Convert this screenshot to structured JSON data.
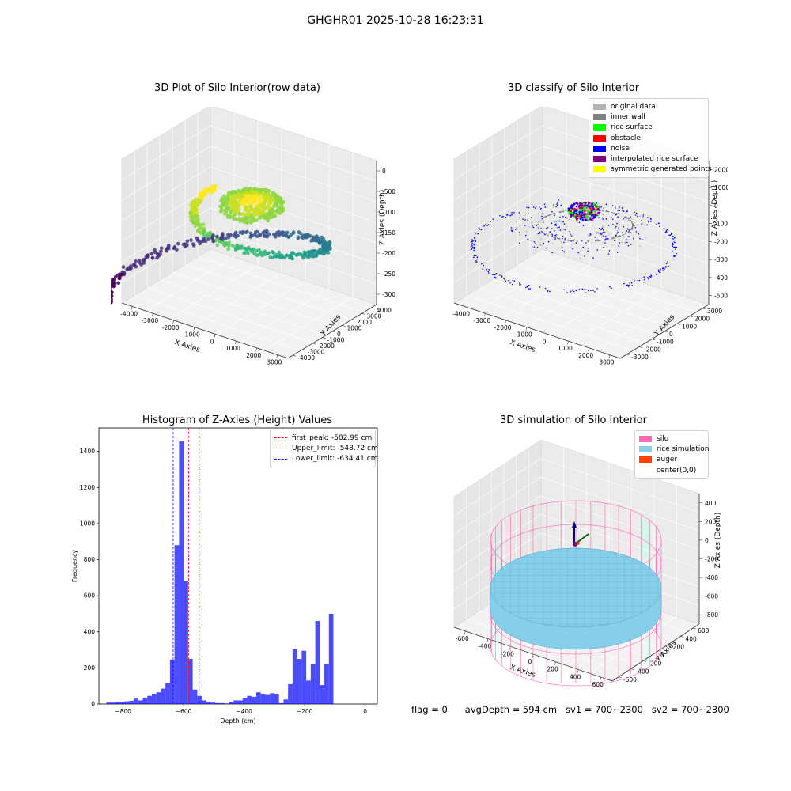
{
  "figure": {
    "suptitle": "GHGHR01 2025-10-28 16:23:31"
  },
  "panels": {
    "raw": {
      "title": "3D Plot of Silo Interior(row data)",
      "x_label": "X Axies",
      "y_label": "Y Axies",
      "z_label": "Z Axies (Depth)",
      "x_ticks": [
        "-4000",
        "-3000",
        "-2000",
        "-1000",
        "0",
        "1000",
        "2000",
        "3000"
      ],
      "y_ticks": [
        "-4000",
        "-3000",
        "-2000",
        "-1000",
        "0",
        "1000",
        "2000",
        "3000",
        "4000"
      ],
      "z_ticks": [
        "0",
        "-500",
        "-1000",
        "-1500",
        "-2000",
        "-2500",
        "-3000"
      ]
    },
    "classify": {
      "title": "3D classify of Silo Interior",
      "x_label": "X Axies",
      "y_label": "Y Axies",
      "z_label": "Z Axies (Depth)",
      "x_ticks": [
        "-4000",
        "-3000",
        "-2000",
        "-1000",
        "0",
        "1000",
        "2000",
        "3000"
      ],
      "y_ticks": [
        "-3000",
        "-2000",
        "-1000",
        "0",
        "1000",
        "2000",
        "3000"
      ],
      "z_ticks": [
        "2000",
        "1000",
        "0",
        "-1000",
        "-2000",
        "-3000",
        "-4000",
        "-5000"
      ],
      "legend": [
        {
          "label": "original data",
          "color": "#b3b3b3"
        },
        {
          "label": "inner wall",
          "color": "#808080"
        },
        {
          "label": "rice surface",
          "color": "#00ff00"
        },
        {
          "label": "obstacle",
          "color": "#ff0000"
        },
        {
          "label": "noise",
          "color": "#0000ff"
        },
        {
          "label": "interpolated rice surface",
          "color": "#800080"
        },
        {
          "label": "symmetric generated points",
          "color": "#ffff00"
        }
      ]
    },
    "simulation": {
      "title": "3D simulation of Silo Interior",
      "x_label": "X Axies",
      "y_label": "Y Axies",
      "z_label": "Z Axies (Depth)",
      "x_ticks": [
        "-600",
        "-400",
        "-200",
        "0",
        "200",
        "400",
        "600"
      ],
      "y_ticks": [
        "-600",
        "-400",
        "-200",
        "0",
        "200",
        "400",
        "600"
      ],
      "z_ticks": [
        "400",
        "200",
        "0",
        "-200",
        "-400",
        "-600",
        "-800"
      ],
      "legend": [
        {
          "label": "silo",
          "color": "#ff69b4"
        },
        {
          "label": "rice simulation",
          "color": "#87ceeb"
        },
        {
          "label": "auger",
          "color": "#ff4500"
        },
        {
          "label": "center(0,0)",
          "color": ""
        }
      ]
    }
  },
  "chart_data": {
    "type": "bar",
    "title": "Histogram of Z-Axies (Height) Values",
    "xlabel": "Depth (cm)",
    "ylabel": "Frequency",
    "xlim": [
      -880,
      40
    ],
    "ylim": [
      0,
      1530
    ],
    "bin_width": 15,
    "bin_start": -855,
    "values": [
      8,
      8,
      10,
      12,
      15,
      18,
      30,
      20,
      35,
      45,
      55,
      65,
      85,
      115,
      245,
      880,
      1455,
      680,
      250,
      80,
      45,
      20,
      10,
      8,
      5,
      5,
      3,
      10,
      20,
      20,
      35,
      45,
      40,
      65,
      55,
      50,
      60,
      55,
      5,
      25,
      110,
      305,
      250,
      295,
      130,
      220,
      460,
      105,
      220,
      500
    ],
    "x_ticks": [
      -800,
      -600,
      -400,
      -200,
      0
    ],
    "y_ticks": [
      0,
      200,
      400,
      600,
      800,
      1000,
      1200,
      1400
    ],
    "bar_color": "#0000ff",
    "legend": [
      {
        "label": "first_peak: -582.99 cm",
        "color": "#ff0000",
        "value": -582.99
      },
      {
        "label": "Upper_limit: -548.72 cm",
        "color": "#0000ff",
        "value": -548.72
      },
      {
        "label": "Lower_limit: -634.41 cm",
        "color": "#0000ff",
        "value": -634.41
      }
    ]
  },
  "status": {
    "flag": "flag = 0",
    "avg_depth": "avgDepth = 594 cm",
    "sv1": "sv1 = 700~2300",
    "sv2": "sv2 = 700~2300"
  }
}
